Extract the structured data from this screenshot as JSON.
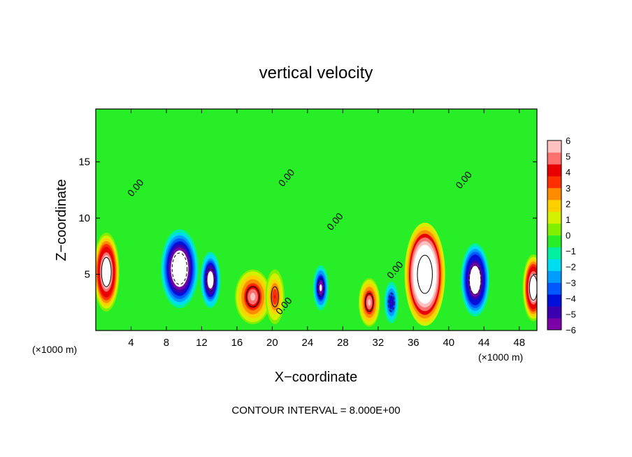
{
  "chart_data": {
    "type": "heatmap",
    "title": "vertical velocity",
    "xlabel": "X−coordinate",
    "ylabel": "Z−coordinate",
    "x_unit_left": "(×1000 m)",
    "x_unit_right": "(×1000 m)",
    "xlim": [
      0,
      50
    ],
    "ylim": [
      0,
      19.7
    ],
    "x_ticks": [
      4,
      8,
      12,
      16,
      20,
      24,
      28,
      32,
      36,
      40,
      44,
      48
    ],
    "y_ticks": [
      5,
      10,
      15
    ],
    "footer": "CONTOUR INTERVAL = 8.000E+00",
    "contour_interval": 8.0,
    "contour_labels": [
      {
        "text": "0.00",
        "x": 4.8,
        "y": 12.5
      },
      {
        "text": "0.00",
        "x": 21.9,
        "y": 13.4
      },
      {
        "text": "0.00",
        "x": 27.4,
        "y": 9.5
      },
      {
        "text": "0.00",
        "x": 21.6,
        "y": 2.0
      },
      {
        "text": "0.00",
        "x": 34.2,
        "y": 5.2
      },
      {
        "text": "0.00",
        "x": 42.0,
        "y": 13.2
      }
    ],
    "colorbar": {
      "min": -6,
      "max": 6,
      "tick_labels": [
        "6",
        "5",
        "4",
        "3",
        "2",
        "1",
        "0",
        "−1",
        "−2",
        "−3",
        "−4",
        "−5",
        "−6"
      ],
      "colors": [
        "#7a00a8",
        "#3a00b0",
        "#0010d8",
        "#0058ff",
        "#009cff",
        "#00dcf0",
        "#00f0a0",
        "#28ee28",
        "#80f000",
        "#d2f000",
        "#ffd000",
        "#ff8c00",
        "#ff3000",
        "#e80000",
        "#ff7070",
        "#ffc0c0"
      ]
    },
    "field_features": [
      {
        "x": 1.2,
        "y": 5.2,
        "value": 9,
        "sx": 1.1,
        "sy": 2.6
      },
      {
        "x": 9.5,
        "y": 5.5,
        "value": -10,
        "sx": 1.7,
        "sy": 2.8
      },
      {
        "x": 13.0,
        "y": 4.5,
        "value": -8,
        "sx": 0.9,
        "sy": 2.0
      },
      {
        "x": 17.8,
        "y": 3.0,
        "value": 6,
        "sx": 1.5,
        "sy": 1.8
      },
      {
        "x": 20.3,
        "y": 3.0,
        "value": 4,
        "sx": 0.8,
        "sy": 1.8
      },
      {
        "x": 25.5,
        "y": 3.8,
        "value": -7,
        "sx": 0.7,
        "sy": 1.6
      },
      {
        "x": 31.0,
        "y": 2.5,
        "value": 6,
        "sx": 0.9,
        "sy": 1.6
      },
      {
        "x": 33.5,
        "y": 2.5,
        "value": -5,
        "sx": 0.7,
        "sy": 1.6
      },
      {
        "x": 37.3,
        "y": 5.0,
        "value": 14,
        "sx": 1.7,
        "sy": 3.4
      },
      {
        "x": 43.0,
        "y": 4.5,
        "value": -9,
        "sx": 1.3,
        "sy": 2.6
      },
      {
        "x": 49.6,
        "y": 3.8,
        "value": 9,
        "sx": 0.9,
        "sy": 2.2
      }
    ]
  }
}
